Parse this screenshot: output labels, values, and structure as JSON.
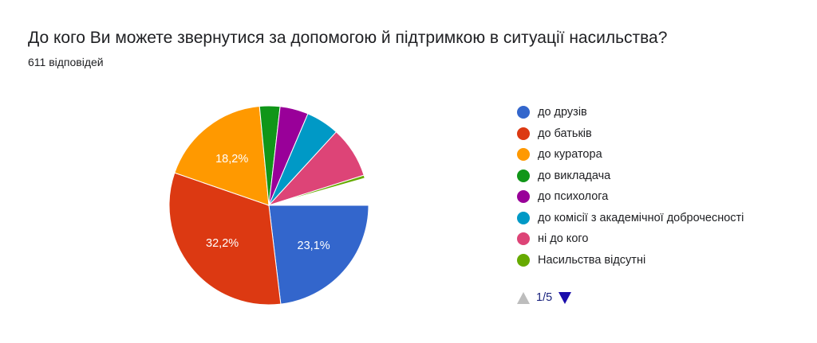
{
  "title": "До кого Ви можете звернутися за допомогою й підтримкою в ситуації насильства?",
  "subtitle": "611 відповідей",
  "chart_data": {
    "type": "pie",
    "title": "До кого Ви можете звернутися за допомогою й підтримкою в ситуації насильства?",
    "categories": [
      "до друзів",
      "до батьків",
      "до куратора",
      "до викладача",
      "до психолога",
      "до комісії з академічної доброчесності",
      "ні до кого",
      "Насильства відсутні"
    ],
    "values": [
      23.1,
      32.2,
      18.2,
      3.3,
      4.6,
      5.4,
      8.3,
      0.5
    ],
    "colors": [
      "#3366cc",
      "#dc3912",
      "#ff9900",
      "#109618",
      "#990099",
      "#0099c6",
      "#dd4477",
      "#66aa00"
    ],
    "data_labels": [
      "23,1%",
      "32,2%",
      "18,2%",
      "",
      "",
      "",
      "",
      ""
    ],
    "unlabeled_share": 4.4,
    "legend_position": "right"
  },
  "pager": {
    "text": "1/5"
  }
}
